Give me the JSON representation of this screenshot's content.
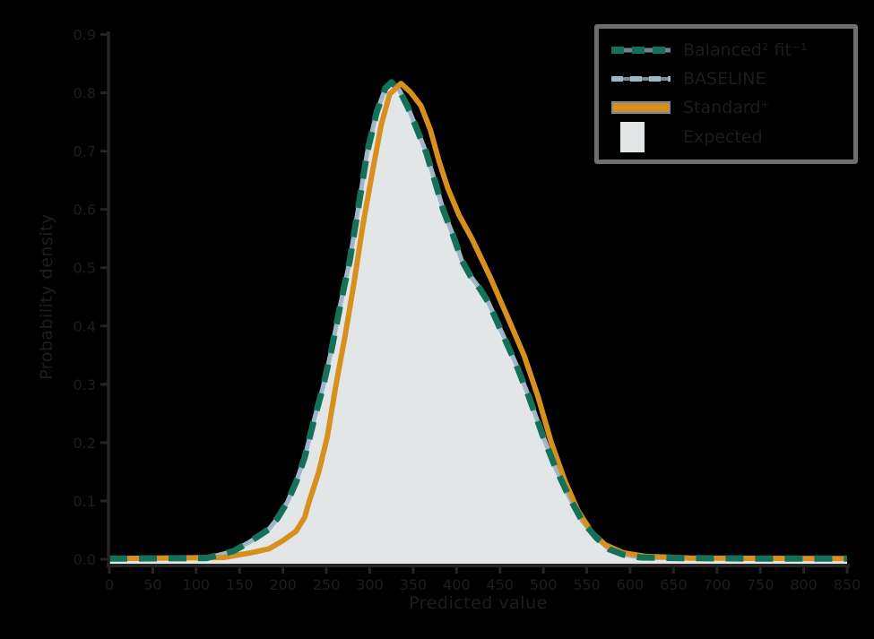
{
  "figure": {
    "background_color": "#000000",
    "axis_color": "#242424",
    "text_color": "#1d1d1d"
  },
  "legend": {
    "border_color": "#6e6e6e",
    "entries": [
      {
        "label": "Balanced² fit⁻¹",
        "swatch": "dashed-teal-line",
        "color": "#15705a"
      },
      {
        "label": "BASELINE",
        "swatch": "blue-line",
        "color": "#9db6c8"
      },
      {
        "label": "Standard⁺",
        "swatch": "orange-line",
        "color": "#d7901d"
      },
      {
        "label": "Expected",
        "swatch": "gray-patch",
        "color": "#e3e6e7"
      }
    ]
  },
  "chart_data": {
    "type": "area",
    "title": "",
    "xlabel": "Predicted value",
    "ylabel": "Probability density",
    "xlim": [
      0,
      850
    ],
    "ylim": [
      0,
      0.9
    ],
    "grid": false,
    "legend_position": "upper right",
    "xticks": [
      0,
      50,
      100,
      150,
      200,
      250,
      300,
      350,
      400,
      450,
      500,
      550,
      600,
      650,
      700,
      750,
      800,
      850
    ],
    "xtick_labels": [
      "0",
      "50",
      "100",
      "150",
      "200",
      "250",
      "300",
      "350",
      "400",
      "450",
      "500",
      "550",
      "600",
      "650",
      "700",
      "750",
      "800",
      "850"
    ],
    "yticks": [
      0,
      0.1,
      0.2,
      0.3,
      0.4,
      0.5,
      0.6,
      0.7,
      0.8,
      0.9
    ],
    "ytick_labels": [
      "0.0",
      "0.1",
      "0.2",
      "0.3",
      "0.4",
      "0.5",
      "0.6",
      "0.7",
      "0.8",
      "0.9"
    ],
    "series": [
      {
        "name": "Expected",
        "type": "area",
        "color": "#e3e6e7",
        "x": [
          0,
          112,
          143,
          163,
          184,
          194,
          205,
          215,
          225,
          235,
          246,
          256,
          266,
          277,
          287,
          297,
          308,
          318,
          325,
          334,
          344,
          354,
          365,
          375,
          385,
          396,
          406,
          416,
          427,
          437,
          452,
          468,
          483,
          499,
          514,
          530,
          545,
          561,
          576,
          592,
          612,
          659,
          752,
          850
        ],
        "y": [
          0.001,
          0.002,
          0.014,
          0.031,
          0.052,
          0.071,
          0.098,
          0.132,
          0.175,
          0.234,
          0.295,
          0.36,
          0.436,
          0.513,
          0.605,
          0.698,
          0.767,
          0.808,
          0.818,
          0.805,
          0.775,
          0.739,
          0.698,
          0.649,
          0.598,
          0.556,
          0.513,
          0.486,
          0.464,
          0.44,
          0.39,
          0.337,
          0.28,
          0.214,
          0.157,
          0.106,
          0.065,
          0.037,
          0.017,
          0.008,
          0.003,
          0.002,
          0.001,
          0.001
        ]
      },
      {
        "name": "BASELINE",
        "type": "line",
        "color": "#9db6c8",
        "width": 5,
        "x": [
          0,
          112,
          143,
          163,
          184,
          194,
          205,
          215,
          225,
          235,
          246,
          256,
          266,
          277,
          287,
          297,
          308,
          318,
          325,
          334,
          344,
          354,
          365,
          375,
          385,
          396,
          406,
          416,
          427,
          437,
          452,
          468,
          483,
          499,
          514,
          530,
          545,
          561,
          576,
          592,
          612,
          659,
          752,
          850
        ],
        "y": [
          0.001,
          0.002,
          0.014,
          0.031,
          0.052,
          0.071,
          0.098,
          0.132,
          0.175,
          0.234,
          0.295,
          0.36,
          0.436,
          0.513,
          0.605,
          0.698,
          0.767,
          0.808,
          0.818,
          0.805,
          0.775,
          0.739,
          0.698,
          0.649,
          0.598,
          0.556,
          0.513,
          0.486,
          0.464,
          0.44,
          0.39,
          0.337,
          0.28,
          0.214,
          0.157,
          0.106,
          0.065,
          0.037,
          0.017,
          0.008,
          0.003,
          0.002,
          0.001,
          0.001
        ]
      },
      {
        "name": "Standard⁺",
        "type": "line",
        "color": "#d7901d",
        "width": 6,
        "x": [
          0,
          132,
          163,
          184,
          199,
          215,
          225,
          230,
          241,
          251,
          261,
          272,
          282,
          292,
          303,
          313,
          323,
          336,
          347,
          359,
          370,
          380,
          390,
          403,
          418,
          439,
          463,
          478,
          494,
          509,
          525,
          540,
          556,
          571,
          592,
          617,
          669,
          850
        ],
        "y": [
          0.001,
          0.003,
          0.011,
          0.018,
          0.031,
          0.048,
          0.072,
          0.098,
          0.148,
          0.209,
          0.298,
          0.387,
          0.475,
          0.572,
          0.664,
          0.744,
          0.798,
          0.816,
          0.801,
          0.778,
          0.736,
          0.682,
          0.636,
          0.59,
          0.549,
          0.483,
          0.401,
          0.349,
          0.278,
          0.201,
          0.134,
          0.083,
          0.046,
          0.025,
          0.011,
          0.005,
          0.002,
          0.001
        ]
      },
      {
        "name": "Balanced² fit⁻¹",
        "type": "dashed-line",
        "color": "#15705a",
        "width": 7,
        "dash": [
          20,
          13
        ],
        "x": [
          0,
          112,
          143,
          163,
          184,
          194,
          205,
          215,
          225,
          235,
          246,
          256,
          266,
          277,
          287,
          297,
          308,
          318,
          325,
          334,
          344,
          354,
          365,
          375,
          385,
          396,
          406,
          416,
          427,
          437,
          452,
          468,
          483,
          499,
          514,
          530,
          545,
          561,
          576,
          592,
          612,
          659,
          752,
          850
        ],
        "y": [
          0.001,
          0.002,
          0.014,
          0.031,
          0.052,
          0.071,
          0.098,
          0.132,
          0.175,
          0.234,
          0.295,
          0.36,
          0.436,
          0.513,
          0.605,
          0.698,
          0.767,
          0.808,
          0.818,
          0.805,
          0.775,
          0.739,
          0.698,
          0.649,
          0.598,
          0.556,
          0.513,
          0.486,
          0.464,
          0.44,
          0.39,
          0.337,
          0.28,
          0.214,
          0.157,
          0.106,
          0.065,
          0.037,
          0.017,
          0.008,
          0.003,
          0.002,
          0.001,
          0.001
        ]
      }
    ]
  }
}
